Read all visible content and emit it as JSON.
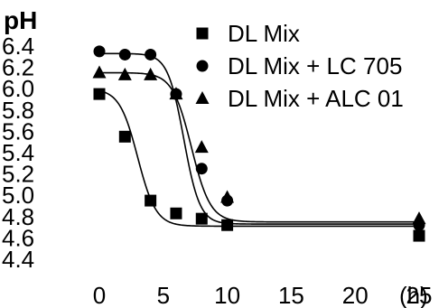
{
  "chart_data": {
    "type": "scatter",
    "ylabel": "pH",
    "x_unit_label": "(h)",
    "x_ticks": [
      {
        "value": 0,
        "label": "0"
      },
      {
        "value": 5,
        "label": "5"
      },
      {
        "value": 10,
        "label": "10"
      },
      {
        "value": 15,
        "label": "15"
      },
      {
        "value": 20,
        "label": "20"
      },
      {
        "value": 25,
        "label": "25"
      }
    ],
    "y_ticks": [
      {
        "value": 6.4,
        "label": "6.4"
      },
      {
        "value": 6.2,
        "label": "6.2"
      },
      {
        "value": 6.0,
        "label": "6.0"
      },
      {
        "value": 5.8,
        "label": "5.8"
      },
      {
        "value": 5.6,
        "label": "5.6"
      },
      {
        "value": 5.4,
        "label": "5.4"
      },
      {
        "value": 5.2,
        "label": "5.2"
      },
      {
        "value": 5.0,
        "label": "5.0"
      },
      {
        "value": 4.8,
        "label": "4.8"
      },
      {
        "value": 4.6,
        "label": "4.6"
      },
      {
        "value": 4.4,
        "label": "4.4"
      }
    ],
    "xlim": [
      -1,
      28
    ],
    "ylim": [
      4.4,
      6.55
    ],
    "legend_position": "top-right",
    "series": [
      {
        "name": "DL Mix",
        "marker": "square",
        "x": [
          0,
          2,
          4,
          6,
          8,
          10,
          25
        ],
        "y": [
          5.95,
          5.55,
          4.95,
          4.83,
          4.78,
          4.72,
          4.62
        ],
        "curve": {
          "high": 6.0,
          "low": 4.71,
          "mid": 3.0,
          "k": 1.4
        }
      },
      {
        "name": "DL Mix + LC 705",
        "marker": "circle",
        "x": [
          0,
          2,
          4,
          6,
          8,
          10,
          25
        ],
        "y": [
          6.35,
          6.32,
          6.32,
          5.95,
          5.25,
          4.95,
          4.72
        ],
        "curve": {
          "high": 6.33,
          "low": 4.73,
          "mid": 6.6,
          "k": 1.6
        }
      },
      {
        "name": "DL Mix + ALC 01",
        "marker": "triangle",
        "x": [
          0,
          2,
          4,
          6,
          8,
          10,
          25
        ],
        "y": [
          6.15,
          6.13,
          6.13,
          5.95,
          5.45,
          4.98,
          4.78
        ],
        "curve": {
          "high": 6.15,
          "low": 4.75,
          "mid": 7.2,
          "k": 1.35
        }
      }
    ]
  }
}
